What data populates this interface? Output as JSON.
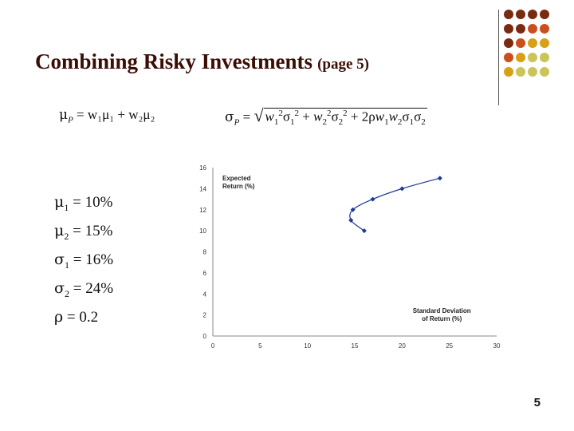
{
  "title": {
    "main": "Combining Risky Investments",
    "page": "(page  5)"
  },
  "formulas": {
    "mu_p": {
      "lhs": "μ",
      "lhs_sub": "P",
      "rhs": "= w₁μ₁ + w₂μ₂"
    },
    "sigma_p": {
      "lhs": "σ",
      "lhs_sub": "P",
      "eq": "="
    }
  },
  "params": [
    {
      "sym": "μ",
      "sub": "1",
      "val": "= 10%"
    },
    {
      "sym": "μ",
      "sub": "2",
      "val": "= 15%"
    },
    {
      "sym": "σ",
      "sub": "1",
      "val": "= 16%"
    },
    {
      "sym": "σ",
      "sub": "2",
      "val": "= 24%"
    },
    {
      "sym": "ρ",
      "sub": "",
      "val": "= 0.2"
    }
  ],
  "chart_data": {
    "type": "line",
    "ylabel_lines": [
      "Expected",
      "Return (%)"
    ],
    "xlabel_lines": [
      "Standard Deviation",
      "of Return (%)"
    ],
    "xlim": [
      0,
      30
    ],
    "ylim": [
      0,
      16
    ],
    "xticks": [
      0,
      5,
      10,
      15,
      20,
      25,
      30
    ],
    "yticks": [
      0,
      2,
      4,
      6,
      8,
      10,
      12,
      14,
      16
    ],
    "x": [
      16.0,
      14.6,
      14.8,
      16.9,
      20.0,
      24.0
    ],
    "y": [
      10.0,
      11.0,
      12.0,
      13.0,
      14.0,
      15.0
    ],
    "color": "#1f3a93"
  },
  "decor": {
    "dot_colors": [
      [
        "#7a2a10",
        "#7a2a10",
        "#7a2a10",
        "#7a2a10"
      ],
      [
        "#7a2a10",
        "#7a2a10",
        "#c9501e",
        "#c9501e"
      ],
      [
        "#7a2a10",
        "#c9501e",
        "#d8a018",
        "#d8a018"
      ],
      [
        "#c9501e",
        "#d8a018",
        "#cbc45a",
        "#cbc45a"
      ],
      [
        "#d8a018",
        "#cbc45a",
        "#cbc45a",
        "#cbc45a"
      ]
    ]
  },
  "slide_number": "5"
}
